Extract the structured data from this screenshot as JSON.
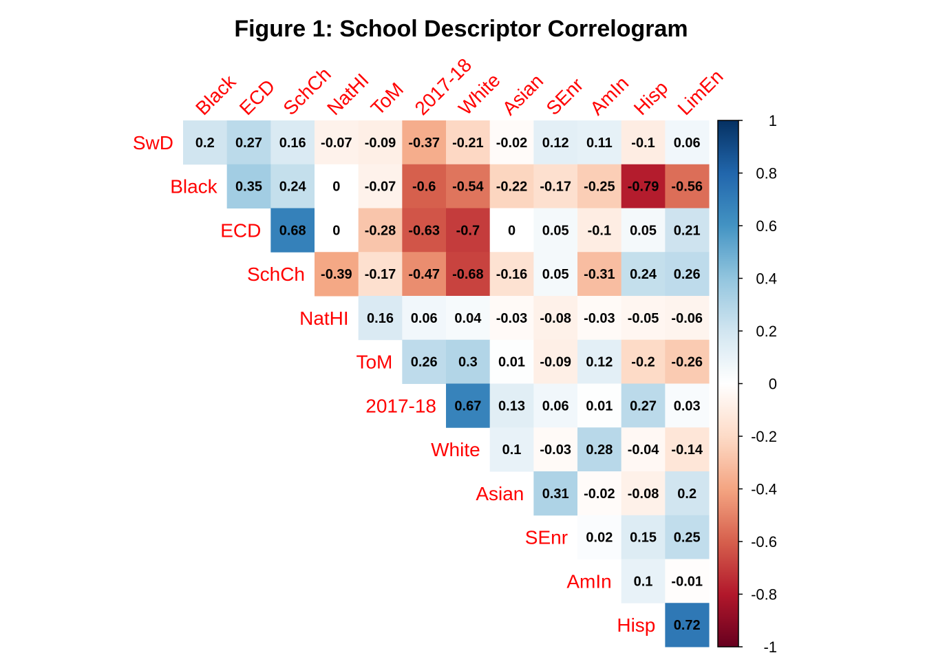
{
  "chart_data": {
    "type": "heatmap",
    "title": "Figure 1: School Descriptor Correlogram",
    "column_labels": [
      "Black",
      "ECD",
      "SchCh",
      "NatHI",
      "ToM",
      "2017-18",
      "White",
      "Asian",
      "SEnr",
      "AmIn",
      "Hisp",
      "LimEn"
    ],
    "row_labels": [
      "SwD",
      "Black",
      "ECD",
      "SchCh",
      "NatHI",
      "ToM",
      "2017-18",
      "White",
      "Asian",
      "SEnr",
      "AmIn",
      "Hisp"
    ],
    "values": [
      [
        0.2,
        0.27,
        0.16,
        -0.07,
        -0.09,
        -0.37,
        -0.21,
        -0.02,
        0.12,
        0.11,
        -0.1,
        0.06
      ],
      [
        null,
        0.35,
        0.24,
        0,
        -0.07,
        -0.6,
        -0.54,
        -0.22,
        -0.17,
        -0.25,
        -0.79,
        -0.56
      ],
      [
        null,
        null,
        0.68,
        0,
        -0.28,
        -0.63,
        -0.7,
        0,
        0.05,
        -0.1,
        0.05,
        0.21
      ],
      [
        null,
        null,
        null,
        -0.39,
        -0.17,
        -0.47,
        -0.68,
        -0.16,
        0.05,
        -0.31,
        0.24,
        0.26
      ],
      [
        null,
        null,
        null,
        null,
        0.16,
        0.06,
        0.04,
        -0.03,
        -0.08,
        -0.03,
        -0.05,
        -0.06
      ],
      [
        null,
        null,
        null,
        null,
        null,
        0.26,
        0.3,
        0.01,
        -0.09,
        0.12,
        -0.2,
        -0.26
      ],
      [
        null,
        null,
        null,
        null,
        null,
        null,
        0.67,
        0.13,
        0.06,
        0.01,
        0.27,
        0.03
      ],
      [
        null,
        null,
        null,
        null,
        null,
        null,
        null,
        0.1,
        -0.03,
        0.28,
        -0.04,
        -0.14
      ],
      [
        null,
        null,
        null,
        null,
        null,
        null,
        null,
        null,
        0.31,
        -0.02,
        -0.08,
        0.2
      ],
      [
        null,
        null,
        null,
        null,
        null,
        null,
        null,
        null,
        null,
        0.02,
        0.15,
        0.25
      ],
      [
        null,
        null,
        null,
        null,
        null,
        null,
        null,
        null,
        null,
        null,
        0.1,
        -0.01
      ],
      [
        null,
        null,
        null,
        null,
        null,
        null,
        null,
        null,
        null,
        null,
        null,
        0.72
      ]
    ],
    "colorbar": {
      "range": [
        -1,
        1
      ],
      "ticks": [
        "1",
        "0.8",
        "0.6",
        "0.4",
        "0.2",
        "0",
        "-0.2",
        "-0.4",
        "-0.6",
        "-0.8",
        "-1"
      ],
      "tick_values": [
        1,
        0.8,
        0.6,
        0.4,
        0.2,
        0,
        -0.2,
        -0.4,
        -0.6,
        -0.8,
        -1
      ]
    },
    "colors": {
      "label": "#ff0000",
      "scale": [
        "#67001f",
        "#b2182b",
        "#d6604d",
        "#f4a582",
        "#fddbc7",
        "#ffffff",
        "#d1e5f0",
        "#92c5de",
        "#4393c3",
        "#2166ac",
        "#053061"
      ]
    }
  }
}
